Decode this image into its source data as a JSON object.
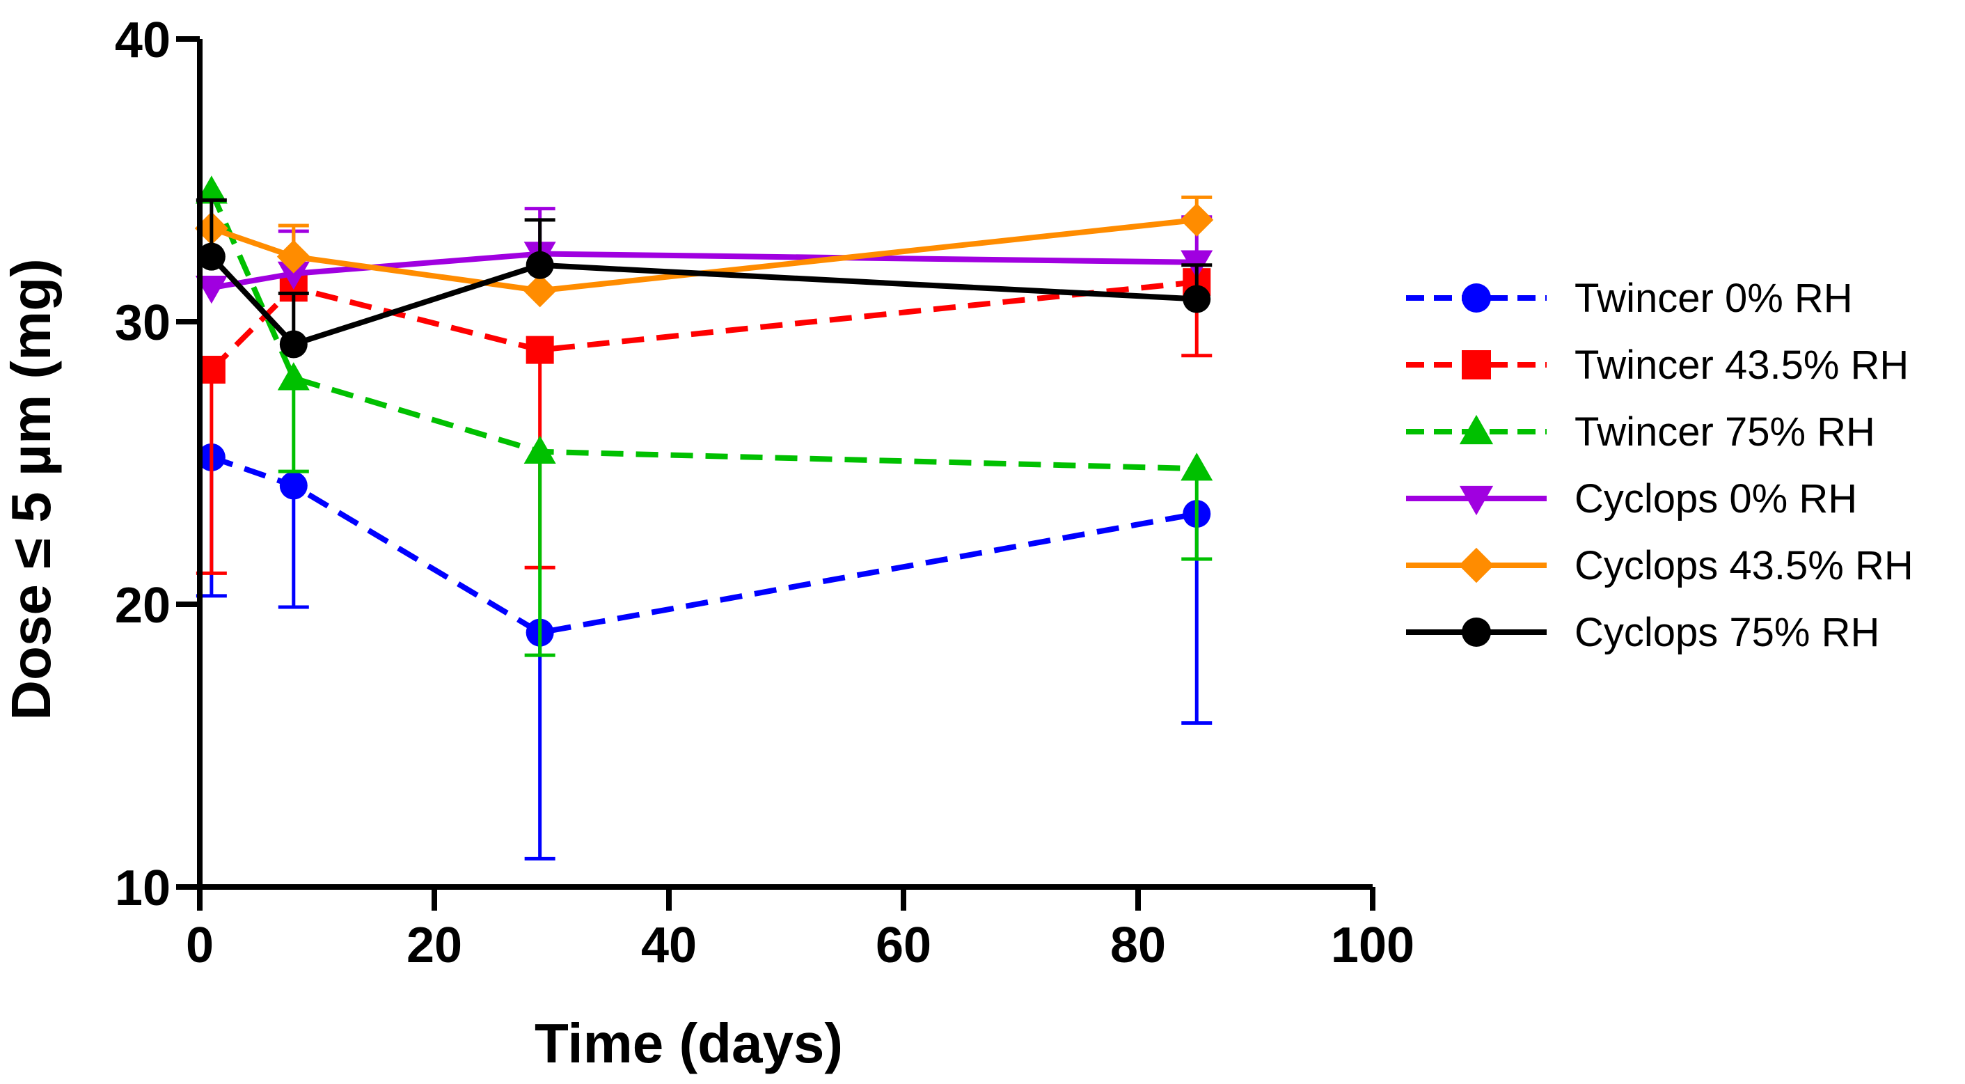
{
  "chart_data": {
    "type": "line",
    "title": "",
    "xlabel": "Time (days)",
    "ylabel": "Dose ≤ 5 µm (mg)",
    "xlim": [
      0,
      100
    ],
    "ylim": [
      10,
      40
    ],
    "xticks": [
      "0",
      "20",
      "40",
      "60",
      "80",
      "100"
    ],
    "yticks": [
      "10",
      "20",
      "30",
      "40"
    ],
    "grid": false,
    "legend_position": "right",
    "series": [
      {
        "name": "Twincer 0% RH",
        "color": "#0000ff",
        "dash": "dashed",
        "marker": "circle",
        "x": [
          1,
          8,
          29,
          85
        ],
        "y": [
          25.2,
          24.2,
          19.0,
          23.2
        ],
        "err_low": [
          4.9,
          4.3,
          8.0,
          7.4
        ],
        "err_high": [
          0,
          0,
          0,
          0
        ]
      },
      {
        "name": "Twincer 43.5% RH",
        "color": "#ff0000",
        "dash": "dashed",
        "marker": "square",
        "x": [
          1,
          8,
          29,
          85
        ],
        "y": [
          28.3,
          31.2,
          29.0,
          31.4
        ],
        "err_low": [
          7.2,
          0,
          7.7,
          2.6
        ],
        "err_high": [
          0,
          0,
          0,
          0
        ]
      },
      {
        "name": "Twincer 75% RH",
        "color": "#00c000",
        "dash": "dashed",
        "marker": "triangle-up",
        "x": [
          1,
          8,
          29,
          85
        ],
        "y": [
          34.6,
          28.0,
          25.4,
          24.8
        ],
        "err_low": [
          0,
          3.3,
          7.2,
          3.2
        ],
        "err_high": [
          0,
          0,
          0,
          0
        ]
      },
      {
        "name": "Cyclops 0% RH",
        "color": "#a000e0",
        "dash": "solid",
        "marker": "triangle-down",
        "x": [
          1,
          8,
          29,
          85
        ],
        "y": [
          31.2,
          31.7,
          32.4,
          32.1
        ],
        "err_low": [
          0,
          0,
          0,
          0
        ],
        "err_high": [
          0,
          1.5,
          1.6,
          1.6
        ]
      },
      {
        "name": "Cyclops 43.5% RH",
        "color": "#ff8c00",
        "dash": "solid",
        "marker": "diamond",
        "x": [
          1,
          8,
          29,
          85
        ],
        "y": [
          33.3,
          32.3,
          31.1,
          33.6
        ],
        "err_low": [
          0,
          0,
          0,
          0
        ],
        "err_high": [
          0,
          1.1,
          0,
          0.8
        ]
      },
      {
        "name": "Cyclops 75% RH",
        "color": "#000000",
        "dash": "solid",
        "marker": "circle",
        "x": [
          1,
          8,
          29,
          85
        ],
        "y": [
          32.3,
          29.2,
          32.0,
          30.8
        ],
        "err_low": [
          0,
          0,
          0,
          0
        ],
        "err_high": [
          2.0,
          1.8,
          1.6,
          1.2
        ]
      }
    ]
  }
}
